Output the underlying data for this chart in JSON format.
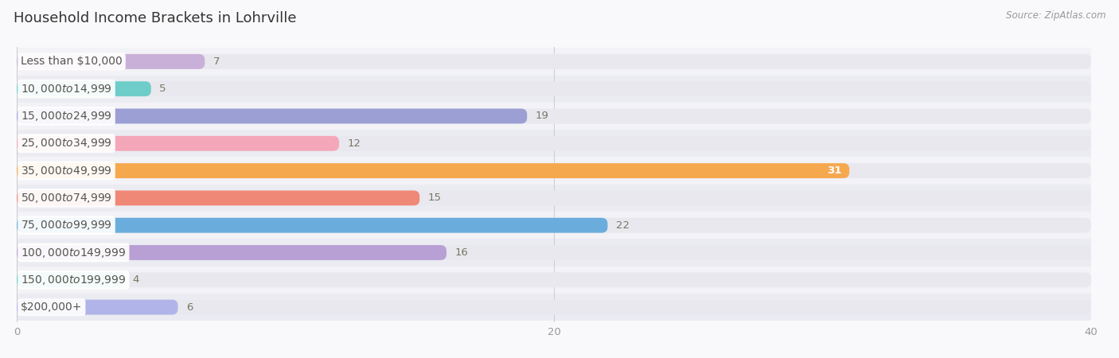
{
  "title": "Household Income Brackets in Lohrville",
  "source": "Source: ZipAtlas.com",
  "categories": [
    "Less than $10,000",
    "$10,000 to $14,999",
    "$15,000 to $24,999",
    "$25,000 to $34,999",
    "$35,000 to $49,999",
    "$50,000 to $74,999",
    "$75,000 to $99,999",
    "$100,000 to $149,999",
    "$150,000 to $199,999",
    "$200,000+"
  ],
  "values": [
    7,
    5,
    19,
    12,
    31,
    15,
    22,
    16,
    4,
    6
  ],
  "bar_colors": [
    "#c9b0d8",
    "#6ecdc8",
    "#9b9fd4",
    "#f4a7b9",
    "#f5a84e",
    "#f08878",
    "#6aaddc",
    "#b89fd4",
    "#6ecdc8",
    "#b0b4e8"
  ],
  "bar_bg_color": "#e8e8ee",
  "row_bg_even": "#f2f2f7",
  "row_bg_odd": "#ebebf2",
  "background_color": "#f9f9fb",
  "xlim": [
    0,
    40
  ],
  "xticks": [
    0,
    20,
    40
  ],
  "title_fontsize": 13,
  "label_fontsize": 10,
  "value_fontsize": 9.5,
  "bar_height": 0.55,
  "value_inside_index": 4,
  "value_inside_color": "white"
}
